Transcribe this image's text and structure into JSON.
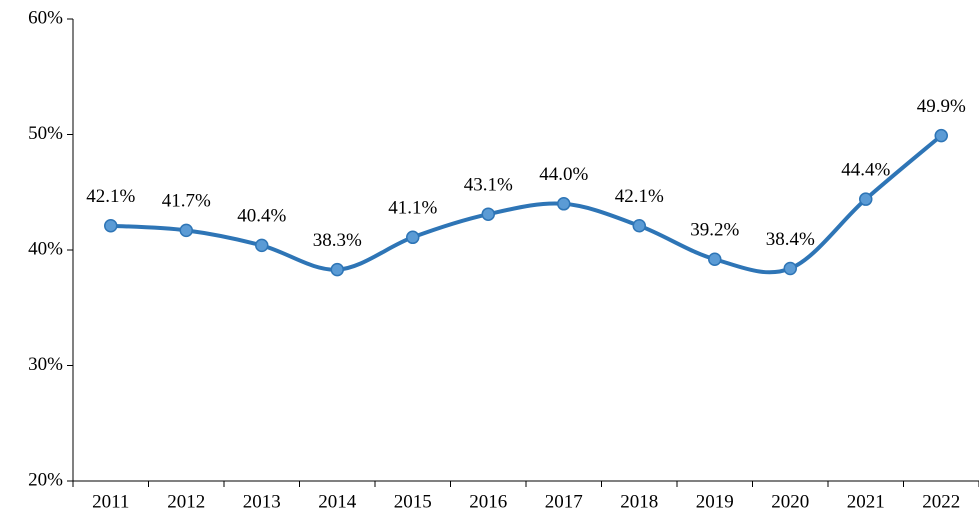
{
  "chart_data": {
    "type": "line",
    "categories": [
      "2011",
      "2012",
      "2013",
      "2014",
      "2015",
      "2016",
      "2017",
      "2018",
      "2019",
      "2020",
      "2021",
      "2022"
    ],
    "series": [
      {
        "color": "#2e75b6",
        "marker_color": "#5b9bd5",
        "values": [
          42.1,
          41.7,
          40.4,
          38.3,
          41.1,
          43.1,
          44.0,
          42.1,
          39.2,
          38.4,
          44.4,
          49.9
        ],
        "value_labels": [
          "42.1%",
          "41.7%",
          "40.4%",
          "38.3%",
          "41.1%",
          "43.1%",
          "44.0%",
          "42.1%",
          "39.2%",
          "38.4%",
          "44.4%",
          "49.9%"
        ]
      }
    ],
    "ylim": [
      20,
      60
    ],
    "yticks": [
      {
        "value": 20,
        "label": "20%"
      },
      {
        "value": 30,
        "label": "30%"
      },
      {
        "value": 40,
        "label": "40%"
      },
      {
        "value": 50,
        "label": "50%"
      },
      {
        "value": 60,
        "label": "60%"
      }
    ],
    "smooth": true,
    "grid": false
  }
}
